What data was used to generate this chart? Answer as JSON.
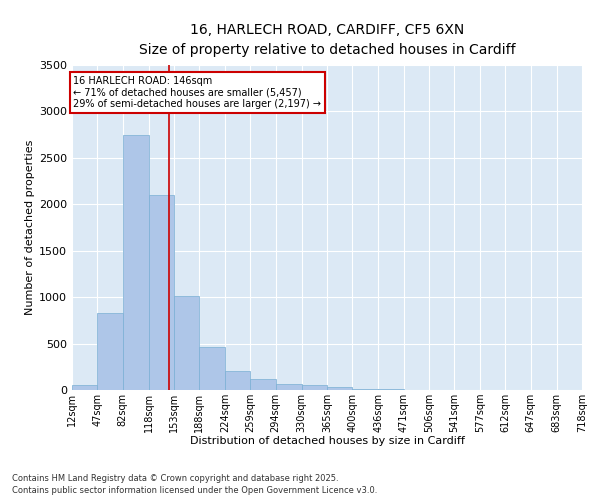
{
  "title_line1": "16, HARLECH ROAD, CARDIFF, CF5 6XN",
  "title_line2": "Size of property relative to detached houses in Cardiff",
  "xlabel": "Distribution of detached houses by size in Cardiff",
  "ylabel": "Number of detached properties",
  "bins": [
    12,
    47,
    82,
    118,
    153,
    188,
    224,
    259,
    294,
    330,
    365,
    400,
    436,
    471,
    506,
    541,
    577,
    612,
    647,
    683,
    718
  ],
  "bar_heights": [
    50,
    830,
    2750,
    2100,
    1010,
    460,
    200,
    120,
    60,
    50,
    30,
    10,
    8,
    5,
    3,
    2,
    1,
    1,
    1,
    1
  ],
  "bar_color": "#aec6e8",
  "bar_edge_color": "#7aafd4",
  "property_size": 146,
  "property_line_color": "#cc0000",
  "annotation_text": "16 HARLECH ROAD: 146sqm\n← 71% of detached houses are smaller (5,457)\n29% of semi-detached houses are larger (2,197) →",
  "annotation_box_color": "#cc0000",
  "ylim": [
    0,
    3500
  ],
  "yticks": [
    0,
    500,
    1000,
    1500,
    2000,
    2500,
    3000,
    3500
  ],
  "background_color": "#dce9f5",
  "footer_line1": "Contains HM Land Registry data © Crown copyright and database right 2025.",
  "footer_line2": "Contains public sector information licensed under the Open Government Licence v3.0.",
  "title_fontsize": 10,
  "subtitle_fontsize": 9,
  "tick_label_fontsize": 7,
  "axis_label_fontsize": 8,
  "ylabel_fontsize": 8
}
